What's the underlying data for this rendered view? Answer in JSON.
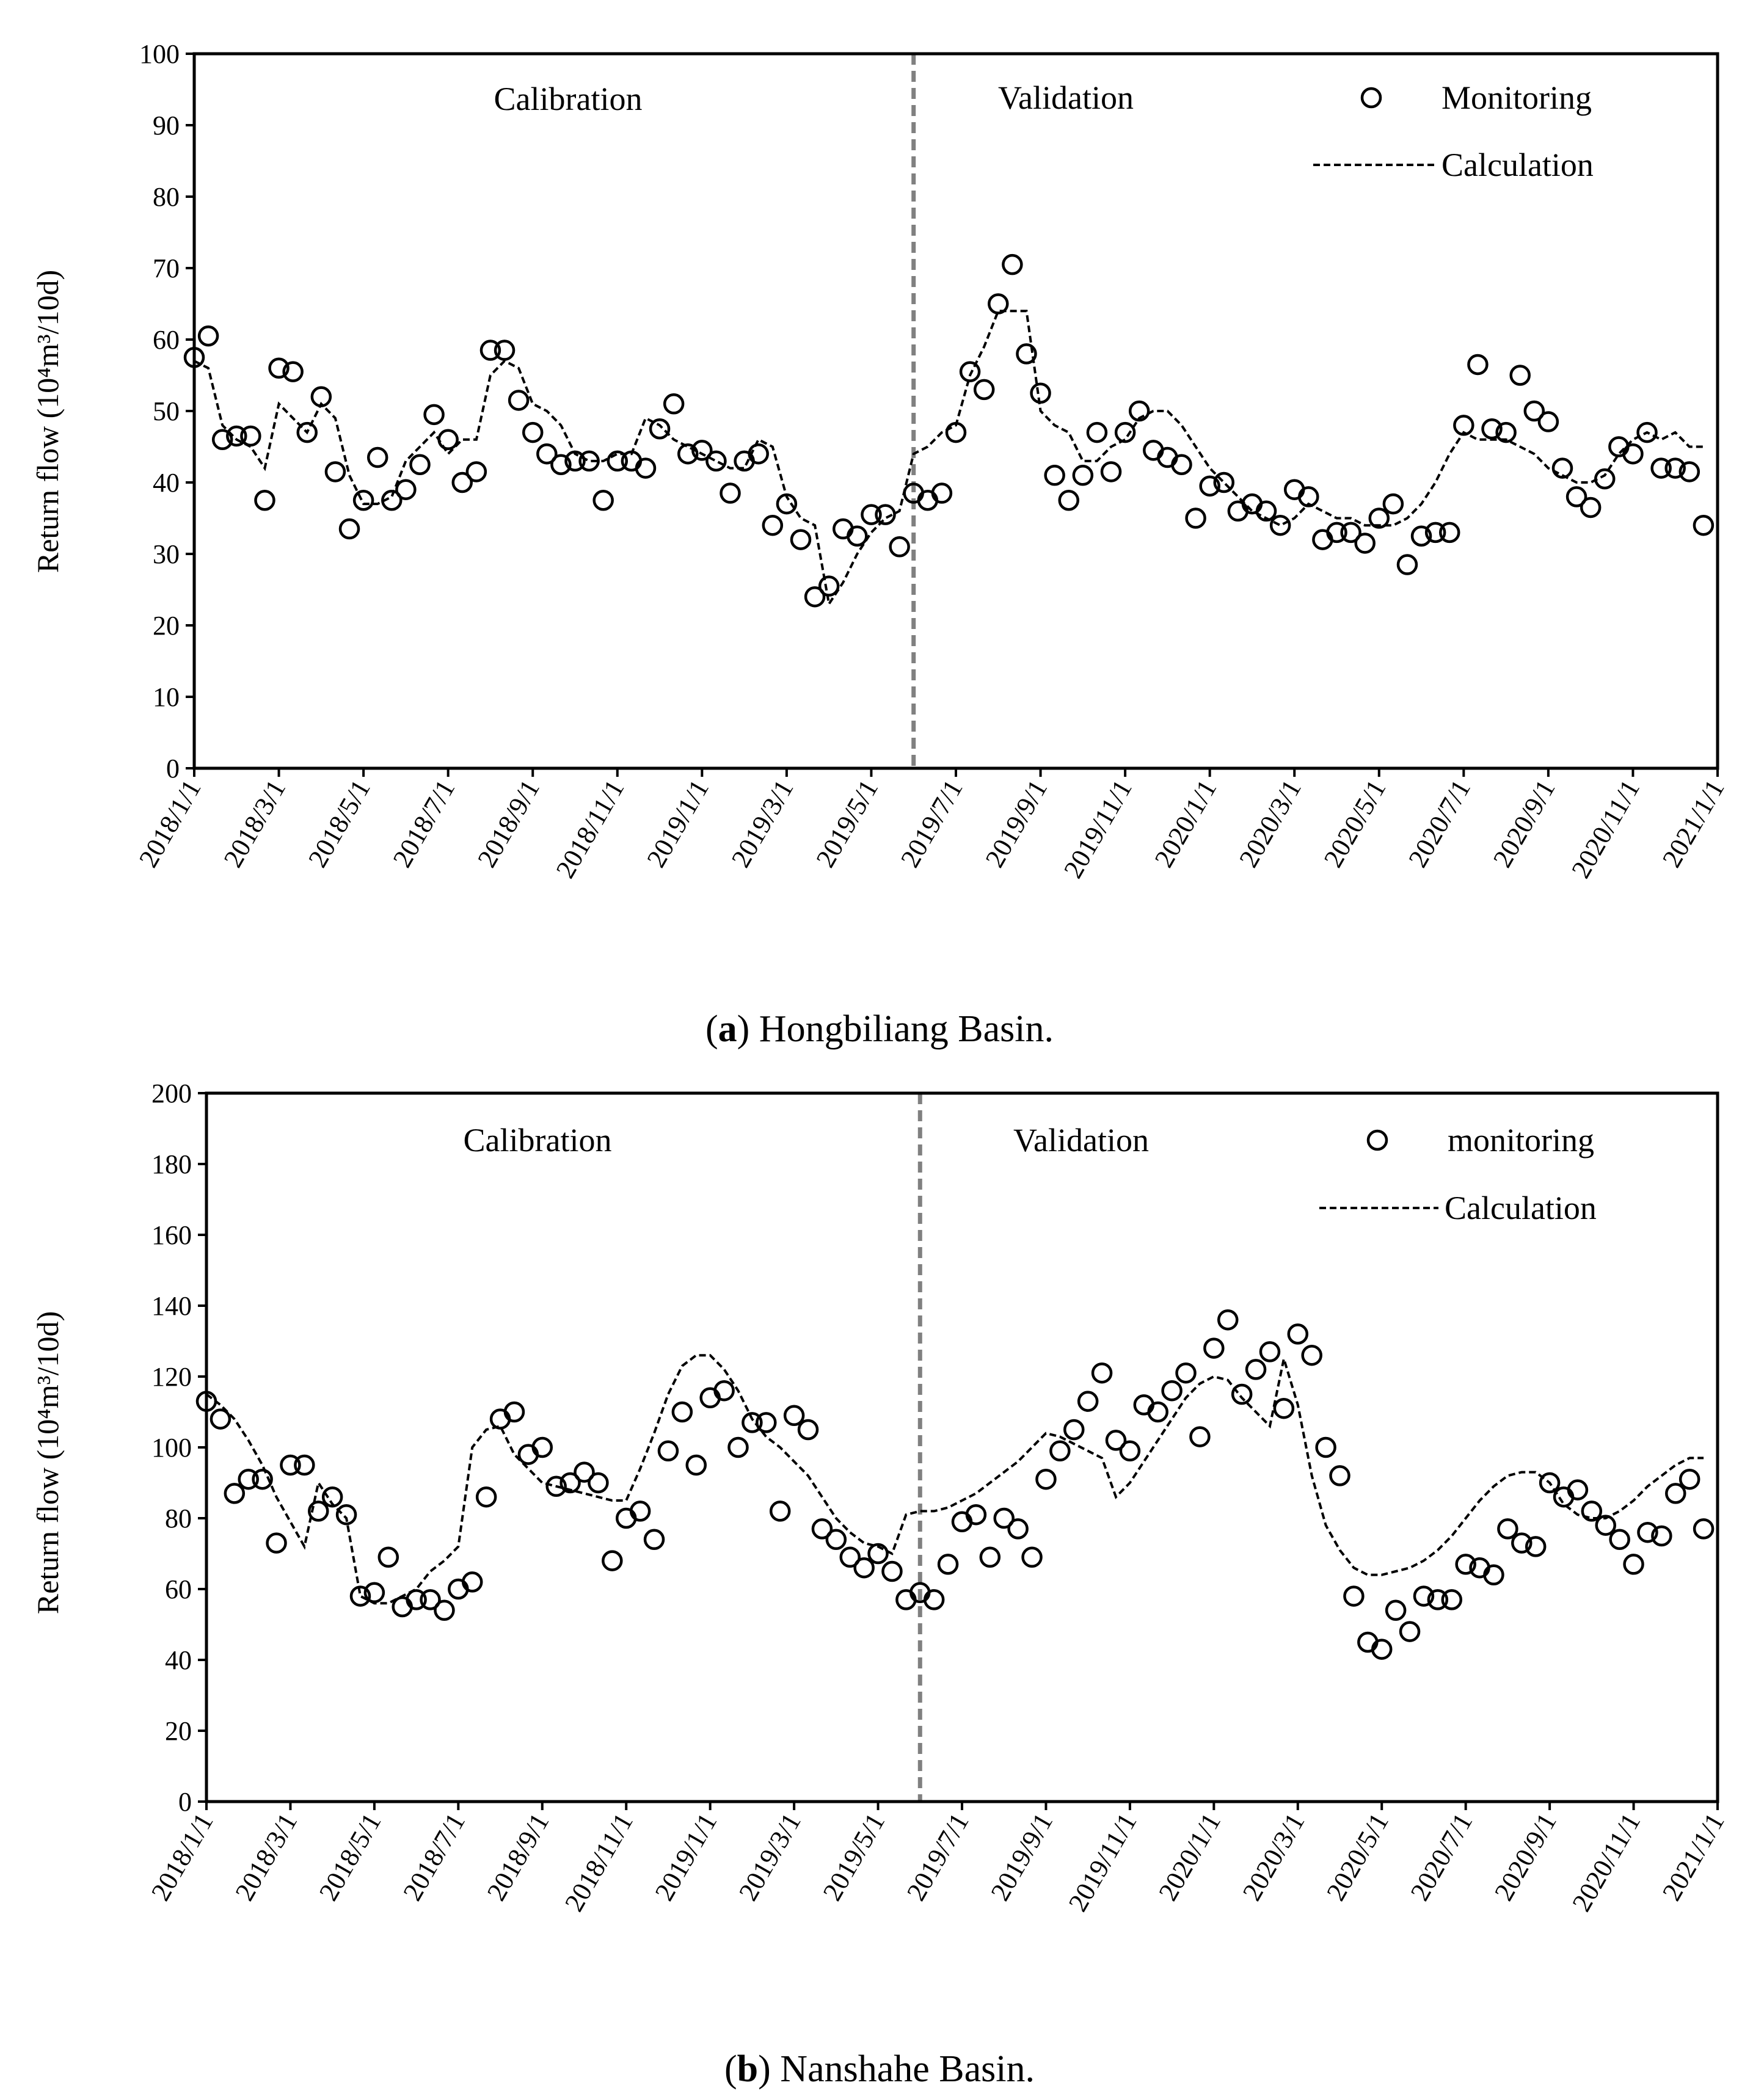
{
  "chart_data": [
    {
      "type": "line",
      "panel_label": "a",
      "caption": "Hongbiliang Basin.",
      "ylabel": "Return flow (10⁴m³/10d)",
      "ylim": [
        0,
        100
      ],
      "yticks": [
        0,
        10,
        20,
        30,
        40,
        50,
        60,
        70,
        80,
        90,
        100
      ],
      "xticks": [
        "2018/1/1",
        "2018/3/1",
        "2018/5/1",
        "2018/7/1",
        "2018/9/1",
        "2018/11/1",
        "2019/1/1",
        "2019/3/1",
        "2019/5/1",
        "2019/7/1",
        "2019/9/1",
        "2019/11/1",
        "2020/1/1",
        "2020/3/1",
        "2020/5/1",
        "2020/7/1",
        "2020/9/1",
        "2020/11/1",
        "2021/1/1"
      ],
      "x_unit": "dekad index (10-day periods from 2018/1/1)",
      "x_range": [
        0,
        108
      ],
      "split_x": 51,
      "regions": {
        "calibration": "Calibration",
        "validation": "Validation"
      },
      "legend": {
        "points": "Monitoring",
        "line": "Calculation"
      },
      "series": [
        {
          "name": "Monitoring",
          "style": "points",
          "x": [
            0,
            1,
            2,
            3,
            4,
            5,
            6,
            7,
            8,
            9,
            10,
            11,
            12,
            13,
            14,
            15,
            16,
            17,
            18,
            19,
            20,
            21,
            22,
            23,
            24,
            25,
            26,
            27,
            28,
            29,
            30,
            31,
            32,
            33,
            34,
            35,
            36,
            37,
            38,
            39,
            40,
            41,
            42,
            43,
            44,
            45,
            46,
            47,
            48,
            49,
            50,
            51,
            52,
            53,
            54,
            55,
            56,
            57,
            58,
            59,
            60,
            61,
            62,
            63,
            64,
            65,
            66,
            67,
            68,
            69,
            70,
            71,
            72,
            73,
            74,
            75,
            76,
            77,
            78,
            79,
            80,
            81,
            82,
            83,
            84,
            85,
            86,
            87,
            88,
            89,
            90,
            91,
            92,
            93,
            94,
            95,
            96,
            97,
            98,
            99,
            100,
            101,
            102,
            103,
            104,
            105,
            106,
            107
          ],
          "values": [
            57.5,
            60.5,
            46,
            46.5,
            46.5,
            37.5,
            56,
            55.5,
            47,
            52,
            41.5,
            33.5,
            37.5,
            43.5,
            37.5,
            39,
            42.5,
            49.5,
            46,
            40,
            41.5,
            58.5,
            58.5,
            51.5,
            47,
            44,
            42.5,
            43,
            43,
            37.5,
            43,
            43,
            42,
            47.5,
            51,
            44,
            44.5,
            43,
            38.5,
            43,
            44,
            34,
            37,
            32,
            24,
            25.5,
            33.5,
            32.5,
            35.5,
            35.5,
            31,
            38.5,
            37.5,
            38.5,
            47,
            55.5,
            53,
            65,
            70.5,
            58,
            52.5,
            41,
            37.5,
            41,
            47,
            41.5,
            47,
            50,
            44.5,
            43.5,
            42.5,
            35,
            39.5,
            40,
            36,
            37,
            36,
            34,
            39,
            38,
            32,
            33,
            33,
            31.5,
            35,
            37,
            28.5,
            32.5,
            33,
            33,
            48,
            56.5,
            47.5,
            47,
            55,
            50,
            48.5,
            42,
            38,
            36.5,
            40.5,
            45,
            44,
            47,
            42,
            42,
            41.5,
            34
          ]
        },
        {
          "name": "Calculation",
          "style": "dashed-line",
          "x": [
            0,
            1,
            2,
            3,
            4,
            5,
            6,
            7,
            8,
            9,
            10,
            11,
            12,
            13,
            14,
            15,
            16,
            17,
            18,
            19,
            20,
            21,
            22,
            23,
            24,
            25,
            26,
            27,
            28,
            29,
            30,
            31,
            32,
            33,
            34,
            35,
            36,
            37,
            38,
            39,
            40,
            41,
            42,
            43,
            44,
            45,
            46,
            47,
            48,
            49,
            50,
            51,
            52,
            53,
            54,
            55,
            56,
            57,
            58,
            59,
            60,
            61,
            62,
            63,
            64,
            65,
            66,
            67,
            68,
            69,
            70,
            71,
            72,
            73,
            74,
            75,
            76,
            77,
            78,
            79,
            80,
            81,
            82,
            83,
            84,
            85,
            86,
            87,
            88,
            89,
            90,
            91,
            92,
            93,
            94,
            95,
            96,
            97,
            98,
            99,
            100,
            101,
            102,
            103,
            104,
            105,
            106,
            107
          ],
          "values": [
            57,
            56,
            48,
            46,
            45,
            42,
            51,
            49,
            47,
            51,
            49,
            41,
            37,
            37,
            38,
            43,
            45,
            47,
            44,
            46,
            46,
            55,
            57,
            56,
            51,
            50,
            48,
            44,
            43,
            43,
            44,
            44,
            49,
            48,
            46,
            45,
            44,
            43,
            42,
            42,
            46,
            45,
            38,
            35,
            34,
            23,
            26,
            30,
            33,
            35,
            36,
            44,
            45,
            47,
            48,
            55,
            59,
            64,
            64,
            64,
            50,
            48,
            47,
            43,
            43,
            45,
            46,
            49,
            50,
            50,
            48,
            45,
            42,
            40,
            38,
            36,
            35,
            34,
            35,
            37,
            36,
            35,
            35,
            34,
            34,
            34,
            35,
            37,
            40,
            44,
            47,
            46,
            46,
            46,
            45,
            44,
            42,
            41,
            40,
            40,
            41,
            44,
            46,
            47,
            46,
            47,
            45,
            45
          ]
        }
      ]
    },
    {
      "type": "line",
      "panel_label": "b",
      "caption": "Nanshahe Basin.",
      "ylabel": "Return flow (10⁴m³/10d)",
      "ylim": [
        0,
        200
      ],
      "yticks": [
        0,
        20,
        40,
        60,
        80,
        100,
        120,
        140,
        160,
        180,
        200
      ],
      "xticks": [
        "2018/1/1",
        "2018/3/1",
        "2018/5/1",
        "2018/7/1",
        "2018/9/1",
        "2018/11/1",
        "2019/1/1",
        "2019/3/1",
        "2019/5/1",
        "2019/7/1",
        "2019/9/1",
        "2019/11/1",
        "2020/1/1",
        "2020/3/1",
        "2020/5/1",
        "2020/7/1",
        "2020/9/1",
        "2020/11/1",
        "2021/1/1"
      ],
      "x_unit": "dekad index (10-day periods from 2018/1/1)",
      "x_range": [
        0,
        108
      ],
      "split_x": 51,
      "regions": {
        "calibration": "Calibration",
        "validation": "Validation"
      },
      "legend": {
        "points": "monitoring",
        "line": "Calculation"
      },
      "series": [
        {
          "name": "monitoring",
          "style": "points",
          "x": [
            0,
            1,
            2,
            3,
            4,
            5,
            6,
            7,
            8,
            9,
            10,
            11,
            12,
            13,
            14,
            15,
            16,
            17,
            18,
            19,
            20,
            21,
            22,
            23,
            24,
            25,
            26,
            27,
            28,
            29,
            30,
            31,
            32,
            33,
            34,
            35,
            36,
            37,
            38,
            39,
            40,
            41,
            42,
            43,
            44,
            45,
            46,
            47,
            48,
            49,
            50,
            51,
            52,
            53,
            54,
            55,
            56,
            57,
            58,
            59,
            60,
            61,
            62,
            63,
            64,
            65,
            66,
            67,
            68,
            69,
            70,
            71,
            72,
            73,
            74,
            75,
            76,
            77,
            78,
            79,
            80,
            81,
            82,
            83,
            84,
            85,
            86,
            87,
            88,
            89,
            90,
            91,
            92,
            93,
            94,
            95,
            96,
            97,
            98,
            99,
            100,
            101,
            102,
            103,
            104,
            105,
            106,
            107
          ],
          "values": [
            113,
            108,
            87,
            91,
            91,
            73,
            95,
            95,
            82,
            86,
            81,
            58,
            59,
            69,
            55,
            57,
            57,
            54,
            60,
            62,
            86,
            108,
            110,
            98,
            100,
            89,
            90,
            93,
            90,
            68,
            80,
            82,
            74,
            99,
            110,
            95,
            114,
            116,
            100,
            107,
            107,
            82,
            109,
            105,
            77,
            74,
            69,
            66,
            70,
            65,
            57,
            59,
            57,
            67,
            79,
            81,
            69,
            80,
            77,
            69,
            91,
            99,
            105,
            113,
            121,
            102,
            99,
            112,
            110,
            116,
            121,
            103,
            128,
            136,
            115,
            122,
            127,
            111,
            132,
            126,
            100,
            92,
            58,
            45,
            43,
            54,
            48,
            58,
            57,
            57,
            67,
            66,
            64,
            77,
            73,
            72,
            90,
            86,
            88,
            82,
            78,
            74,
            67,
            76,
            75,
            87,
            91,
            77
          ]
        },
        {
          "name": "Calculation",
          "style": "dashed-line",
          "x": [
            0,
            1,
            2,
            3,
            4,
            5,
            6,
            7,
            8,
            9,
            10,
            11,
            12,
            13,
            14,
            15,
            16,
            17,
            18,
            19,
            20,
            21,
            22,
            23,
            24,
            25,
            26,
            27,
            28,
            29,
            30,
            31,
            32,
            33,
            34,
            35,
            36,
            37,
            38,
            39,
            40,
            41,
            42,
            43,
            44,
            45,
            46,
            47,
            48,
            49,
            50,
            51,
            52,
            53,
            54,
            55,
            56,
            57,
            58,
            59,
            60,
            61,
            62,
            63,
            64,
            65,
            66,
            67,
            68,
            69,
            70,
            71,
            72,
            73,
            74,
            75,
            76,
            77,
            78,
            79,
            80,
            81,
            82,
            83,
            84,
            85,
            86,
            87,
            88,
            89,
            90,
            91,
            92,
            93,
            94,
            95,
            96,
            97,
            98,
            99,
            100,
            101,
            102,
            103,
            104,
            105,
            106,
            107
          ],
          "values": [
            115,
            112,
            108,
            102,
            95,
            86,
            79,
            72,
            90,
            84,
            80,
            58,
            56,
            56,
            58,
            60,
            65,
            68,
            72,
            100,
            105,
            106,
            98,
            94,
            90,
            89,
            88,
            87,
            86,
            85,
            85,
            94,
            104,
            115,
            123,
            126,
            126,
            122,
            116,
            108,
            103,
            100,
            96,
            92,
            86,
            80,
            76,
            73,
            72,
            70,
            81,
            82,
            82,
            83,
            85,
            87,
            90,
            93,
            96,
            100,
            104,
            103,
            101,
            99,
            97,
            86,
            90,
            96,
            102,
            108,
            114,
            118,
            120,
            119,
            114,
            110,
            106,
            125,
            112,
            92,
            78,
            71,
            66,
            64,
            64,
            65,
            66,
            68,
            71,
            75,
            80,
            85,
            89,
            92,
            93,
            93,
            90,
            84,
            81,
            80,
            80,
            82,
            85,
            89,
            92,
            95,
            97,
            97
          ]
        }
      ]
    }
  ]
}
